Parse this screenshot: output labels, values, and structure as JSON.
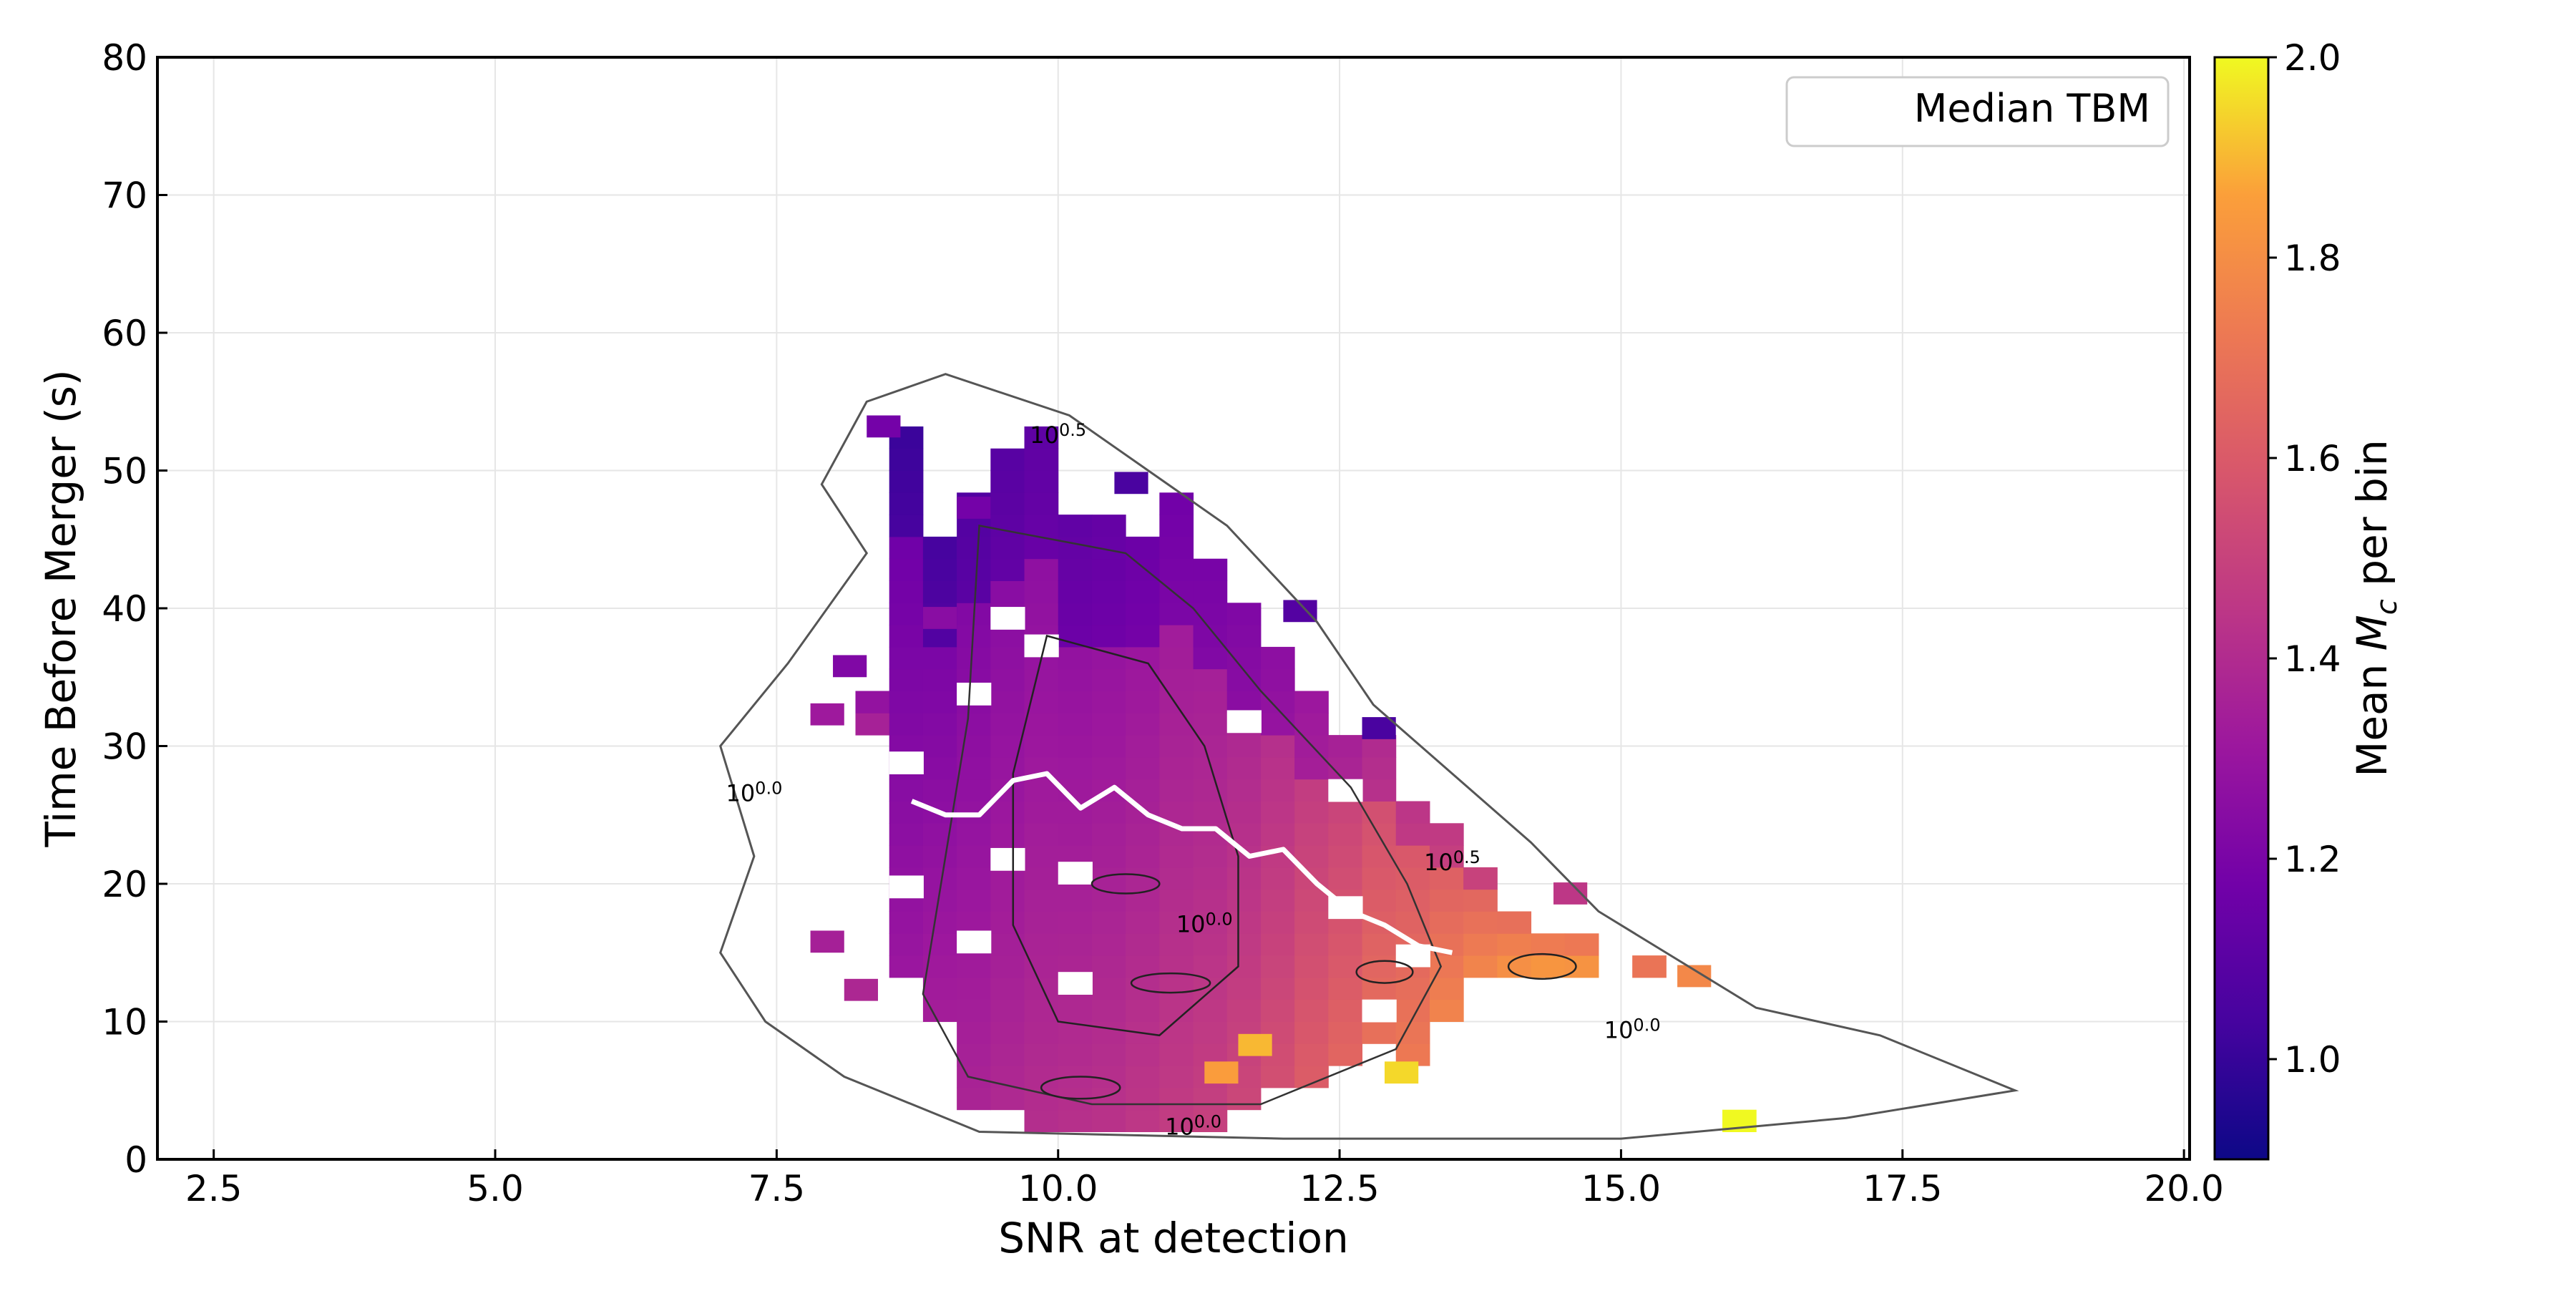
{
  "chart_data": {
    "type": "heatmap",
    "title": "",
    "xlabel": "SNR at detection",
    "ylabel": "Time Before Merger (s)",
    "xlim": [
      2,
      20.05
    ],
    "ylim": [
      0,
      80
    ],
    "x_ticks": [
      2.5,
      5.0,
      7.5,
      10.0,
      12.5,
      15.0,
      17.5,
      20.0
    ],
    "x_tick_labels": [
      "2.5",
      "5.0",
      "7.5",
      "10.0",
      "12.5",
      "15.0",
      "17.5",
      "20.0"
    ],
    "y_ticks": [
      0,
      10,
      20,
      30,
      40,
      50,
      60,
      70,
      80
    ],
    "y_tick_labels": [
      "0",
      "10",
      "20",
      "30",
      "40",
      "50",
      "60",
      "70",
      "80"
    ],
    "grid": true,
    "colorbar": {
      "label": "Mean M_c per bin",
      "label_prefix": "Mean ",
      "label_symbol": "M",
      "label_subscript": "c",
      "label_suffix": " per bin",
      "range": [
        0.9,
        2.0
      ],
      "ticks": [
        1.0,
        1.2,
        1.4,
        1.6,
        1.8,
        2.0
      ],
      "tick_labels": [
        "1.0",
        "1.2",
        "1.4",
        "1.6",
        "1.8",
        "2.0"
      ],
      "colormap": "plasma"
    },
    "legend": {
      "position": "top-right",
      "entries": [
        "Median TBM"
      ]
    },
    "median_tbm": {
      "name": "Median TBM",
      "color": "#ffffff",
      "x": [
        8.7,
        9.0,
        9.3,
        9.6,
        9.9,
        10.2,
        10.5,
        10.8,
        11.1,
        11.4,
        11.7,
        12.0,
        12.3,
        12.6,
        12.9,
        13.2,
        13.5
      ],
      "y": [
        26.0,
        25.0,
        25.0,
        27.5,
        28.0,
        25.5,
        27.0,
        25.0,
        24.0,
        24.0,
        22.0,
        22.5,
        20.0,
        18.0,
        17.0,
        15.5,
        15.0
      ]
    },
    "contour_labels": [
      {
        "text": "10^0.5",
        "x": 10.0,
        "y": 52.0
      },
      {
        "text": "10^0.0",
        "x": 7.3,
        "y": 26.0
      },
      {
        "text": "10^0.0",
        "x": 11.3,
        "y": 16.5
      },
      {
        "text": "10^0.0",
        "x": 15.1,
        "y": 8.8
      },
      {
        "text": "10^0.0",
        "x": 11.2,
        "y": 1.8
      },
      {
        "text": "10^0.5",
        "x": 13.5,
        "y": 21.0
      }
    ],
    "bins": {
      "x_start": 8.2,
      "x_width": 0.3,
      "y_start": 2.0,
      "y_height": 1.6,
      "columns": [
        {
          "x": 8.2,
          "y_min": 30.0,
          "y_max": 34.0,
          "mc": 1.3
        },
        {
          "x": 8.5,
          "y_min": 12.0,
          "y_max": 52.0,
          "mc": 1.22
        },
        {
          "x": 8.8,
          "y_min": 10.0,
          "y_max": 44.0,
          "mc": 1.25
        },
        {
          "x": 9.1,
          "y_min": 3.0,
          "y_max": 48.0,
          "mc": 1.28
        },
        {
          "x": 9.4,
          "y_min": 3.0,
          "y_max": 51.0,
          "mc": 1.3
        },
        {
          "x": 9.7,
          "y_min": 2.0,
          "y_max": 53.0,
          "mc": 1.32
        },
        {
          "x": 10.0,
          "y_min": 2.0,
          "y_max": 46.0,
          "mc": 1.33
        },
        {
          "x": 10.3,
          "y_min": 2.0,
          "y_max": 46.0,
          "mc": 1.34
        },
        {
          "x": 10.6,
          "y_min": 2.0,
          "y_max": 45.0,
          "mc": 1.36
        },
        {
          "x": 10.9,
          "y_min": 2.0,
          "y_max": 48.0,
          "mc": 1.38
        },
        {
          "x": 11.2,
          "y_min": 2.0,
          "y_max": 43.0,
          "mc": 1.4
        },
        {
          "x": 11.5,
          "y_min": 3.0,
          "y_max": 39.0,
          "mc": 1.43
        },
        {
          "x": 11.8,
          "y_min": 4.0,
          "y_max": 36.0,
          "mc": 1.47
        },
        {
          "x": 12.1,
          "y_min": 5.0,
          "y_max": 33.0,
          "mc": 1.52
        },
        {
          "x": 12.4,
          "y_min": 6.0,
          "y_max": 30.0,
          "mc": 1.56
        },
        {
          "x": 12.7,
          "y_min": 8.0,
          "y_max": 30.0,
          "mc": 1.6
        },
        {
          "x": 13.0,
          "y_min": 6.0,
          "y_max": 26.0,
          "mc": 1.64
        },
        {
          "x": 13.3,
          "y_min": 10.0,
          "y_max": 23.0,
          "mc": 1.67
        },
        {
          "x": 13.6,
          "y_min": 12.0,
          "y_max": 20.0,
          "mc": 1.7
        },
        {
          "x": 13.9,
          "y_min": 13.0,
          "y_max": 18.0,
          "mc": 1.72
        },
        {
          "x": 14.2,
          "y_min": 13.0,
          "y_max": 16.0,
          "mc": 1.75
        },
        {
          "x": 14.5,
          "y_min": 13.0,
          "y_max": 16.0,
          "mc": 1.74
        },
        {
          "x": 15.1,
          "y_min": 12.0,
          "y_max": 13.5,
          "mc": 1.76
        },
        {
          "x": 15.9,
          "y_min": 2.0,
          "y_max": 3.5,
          "mc": 1.92
        }
      ],
      "extra_cells": [
        {
          "x": 8.3,
          "y": 52.4,
          "mc": 1.18
        },
        {
          "x": 10.5,
          "y": 48.3,
          "mc": 1.05
        },
        {
          "x": 9.1,
          "y": 46.5,
          "mc": 1.18
        },
        {
          "x": 8.8,
          "y": 38.5,
          "mc": 1.25
        },
        {
          "x": 8.0,
          "y": 35.0,
          "mc": 1.22
        },
        {
          "x": 7.8,
          "y": 31.5,
          "mc": 1.32
        },
        {
          "x": 7.8,
          "y": 15.0,
          "mc": 1.35
        },
        {
          "x": 8.1,
          "y": 11.5,
          "mc": 1.38
        },
        {
          "x": 12.7,
          "y": 30.5,
          "mc": 1.05
        },
        {
          "x": 12.0,
          "y": 39.0,
          "mc": 1.08
        },
        {
          "x": 14.4,
          "y": 18.5,
          "mc": 1.45
        },
        {
          "x": 15.5,
          "y": 12.5,
          "mc": 1.78
        },
        {
          "x": 12.9,
          "y": 5.5,
          "mc": 1.95
        },
        {
          "x": 11.3,
          "y": 5.5,
          "mc": 1.85
        },
        {
          "x": 11.6,
          "y": 7.5,
          "mc": 1.9
        }
      ]
    }
  }
}
